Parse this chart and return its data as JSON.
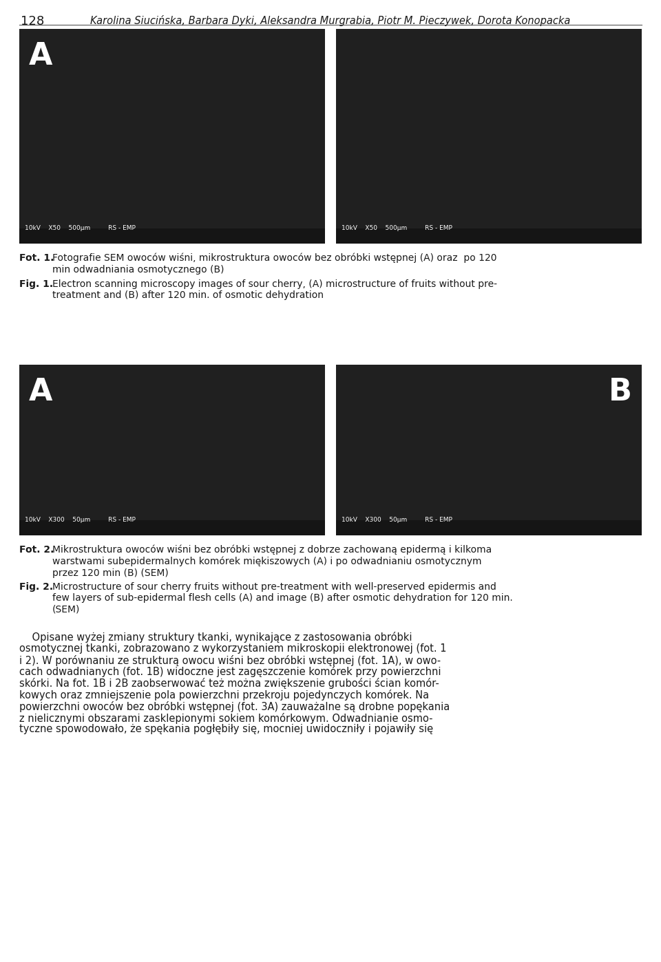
{
  "page_number": "128",
  "header_authors": "Karolina Siucińska, Barbara Dyki, Aleksandra Murgrabia, Piotr M. Pieczywek, Dorota Konopacka",
  "fig1_label": "Fot. 1.",
  "fig1_caption_pl": "Fotografie SEM owoców wiśni, mikrostruktura owoców bez obróbki wstępnej (A) oraz  po 120\nmin odwadniania osmotycznego (B)",
  "fig1_label_en": "Fig. 1.",
  "fig1_caption_en": "Electron scanning microscopy images of sour cherry, (A) microstructure of fruits without pre-\ntreatment and (B) after 120 min. of osmotic dehydration",
  "fig2_label": "Fot. 2.",
  "fig2_caption_pl": "Mikrostruktura owoców wiśni bez obróbki wstępnej z dobrze zachowaną epidermą i kilkoma\nwarstwami subepidermalnych komórek miękiszowych (A) i po odwadnianiu osmotycznym\nprzez 120 min (B) (SEM)",
  "fig2_label_en": "Fig. 2.",
  "fig2_caption_en": "Microstructure of sour cherry fruits without pre-treatment with well-preserved epidermis and\nfew layers of sub-epidermal flesh cells (A) and image (B) after osmotic dehydration for 120 min.\n(SEM)",
  "body_lines": [
    "    Opisane wyżej zmiany struktury tkanki, wynikające z zastosowania obróbki",
    "osmotycznej tkanki, zobrazowano z wykorzystaniem mikroskopii elektronowej (fot. 1",
    "i 2). W porównaniu ze strukturą owocu wiśni bez obróbki wstępnej (fot. 1A), w owo-",
    "cach odwadnianych (fot. 1B) widoczne jest zagęszczenie komórek przy powierzchni",
    "skórki. Na fot. 1B i 2B zaobserwować też można zwiększenie grubości ścian komór-",
    "kowych oraz zmniejszenie pola powierzchni przekroju pojedynczych komórek. Na",
    "powierzchni owoców bez obróbki wstępnej (fot. 3A) zauważalne są drobne popękania",
    "z nielicznymi obszarami zasklepionymi sokiem komórkowym. Odwadnianie osmo-",
    "tyczne spowodowało, że spękania pogłębiły się, mocniej uwidoczniły i pojawiły się"
  ],
  "scale_text_top": "10kV    X50    500μm         RS - EMP",
  "scale_text_bot": "10kV    X300    50μm         RS - EMP",
  "label_A": "A",
  "label_B": "B",
  "bg_color": "#ffffff",
  "text_color": "#1a1a1a",
  "img_dark": "#202020",
  "img_scale_bar": "#151515",
  "header_line_color": "#555555"
}
